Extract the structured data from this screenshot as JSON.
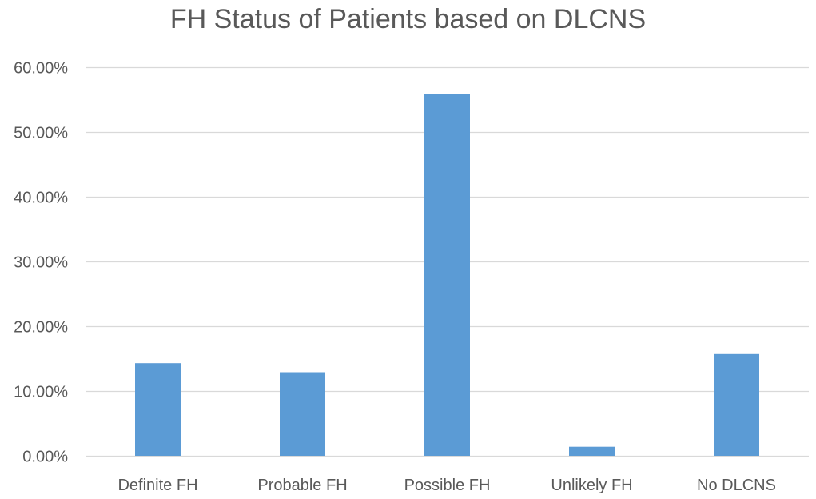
{
  "chart_data": {
    "type": "bar",
    "title": "FH Status of Patients based on DLCNS",
    "xlabel": "",
    "ylabel": "",
    "categories": [
      "Definite FH",
      "Probable FH",
      "Possible FH",
      "Unlikely FH",
      "No DLCNS"
    ],
    "values": [
      14.3,
      12.9,
      55.8,
      1.4,
      15.7
    ],
    "ylim": [
      0,
      60
    ],
    "yticks": [
      "0.00%",
      "10.00%",
      "20.00%",
      "30.00%",
      "40.00%",
      "50.00%",
      "60.00%"
    ],
    "grid": true,
    "legend": "none",
    "bar_color": "#5b9bd5",
    "grid_color": "#d9d9d9",
    "text_color": "#595959"
  }
}
